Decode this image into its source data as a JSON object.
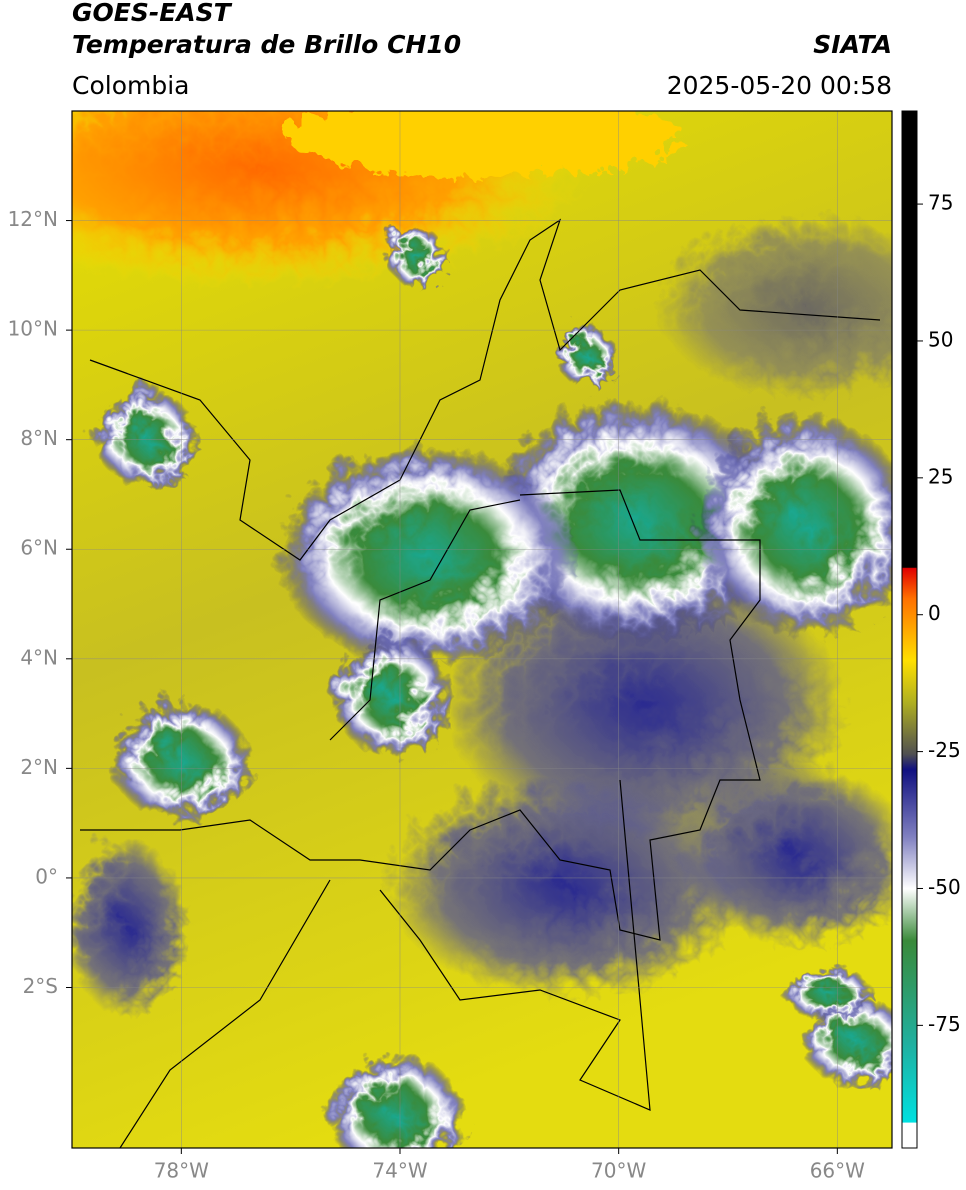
{
  "header": {
    "title": "GOES-EAST",
    "subtitle": "Temperatura de Brillo CH10",
    "source": "SIATA",
    "region": "Colombia",
    "datetime": "2025-05-20 00:58"
  },
  "map": {
    "xlim": [
      -80,
      -65
    ],
    "ylim": [
      -4.93,
      14
    ],
    "xticks": [
      {
        "value": -78,
        "label": "78°W"
      },
      {
        "value": -74,
        "label": "74°W"
      },
      {
        "value": -70,
        "label": "70°W"
      },
      {
        "value": -66,
        "label": "66°W"
      }
    ],
    "yticks": [
      {
        "value": 12,
        "label": "12°N"
      },
      {
        "value": 10,
        "label": "10°N"
      },
      {
        "value": 8,
        "label": "8°N"
      },
      {
        "value": 6,
        "label": "6°N"
      },
      {
        "value": 4,
        "label": "4°N"
      },
      {
        "value": 2,
        "label": "2°N"
      },
      {
        "value": 0,
        "label": "0°"
      },
      {
        "value": -2,
        "label": "2°S"
      }
    ],
    "grid": true
  },
  "colorbar": {
    "lim": [
      -97.4,
      92
    ],
    "ticks": [
      75,
      50,
      25,
      0,
      -25,
      -50,
      -75
    ]
  }
}
